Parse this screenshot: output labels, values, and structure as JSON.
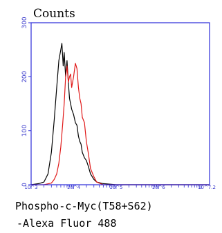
{
  "chart_data": {
    "type": "line",
    "ylabel": "Counts",
    "xlabel_line1": "Phospho-c-Myc(T58+S62)",
    "xlabel_line2": "-Alexa Fluor 488",
    "x_scale": "log",
    "xlim": [
      1000,
      15848932
    ],
    "ylim": [
      0,
      300
    ],
    "y_ticks": [
      {
        "value": 0,
        "label": "0"
      },
      {
        "value": 100,
        "label": "100"
      },
      {
        "value": 200,
        "label": "200"
      },
      {
        "value": 300,
        "label": "300"
      }
    ],
    "x_ticks": [
      {
        "value": 1000,
        "label": "10^3"
      },
      {
        "value": 10000,
        "label": "10^4"
      },
      {
        "value": 100000,
        "label": "10^5"
      },
      {
        "value": 1000000,
        "label": "10^6"
      },
      {
        "value": 15848932,
        "label": "10^7.2"
      }
    ],
    "series": [
      {
        "color": "#000000",
        "points": [
          [
            1000,
            0
          ],
          [
            1500,
            2
          ],
          [
            2000,
            5
          ],
          [
            2500,
            20
          ],
          [
            3000,
            60
          ],
          [
            3500,
            120
          ],
          [
            4000,
            180
          ],
          [
            4500,
            230
          ],
          [
            5000,
            250
          ],
          [
            5300,
            262
          ],
          [
            5700,
            220
          ],
          [
            6000,
            245
          ],
          [
            6500,
            200
          ],
          [
            7000,
            230
          ],
          [
            7500,
            190
          ],
          [
            8000,
            160
          ],
          [
            8500,
            150
          ],
          [
            9000,
            140
          ],
          [
            10000,
            130
          ],
          [
            11000,
            115
          ],
          [
            12000,
            110
          ],
          [
            13000,
            90
          ],
          [
            14000,
            80
          ],
          [
            15000,
            75
          ],
          [
            16000,
            60
          ],
          [
            18000,
            50
          ],
          [
            20000,
            45
          ],
          [
            22000,
            35
          ],
          [
            25000,
            20
          ],
          [
            30000,
            10
          ],
          [
            35000,
            5
          ],
          [
            50000,
            2
          ],
          [
            100000,
            0
          ],
          [
            15848932,
            0
          ]
        ]
      },
      {
        "color": "#e01818",
        "points": [
          [
            1000,
            0
          ],
          [
            2000,
            0
          ],
          [
            3000,
            3
          ],
          [
            3500,
            10
          ],
          [
            4000,
            20
          ],
          [
            4500,
            40
          ],
          [
            5000,
            70
          ],
          [
            5500,
            110
          ],
          [
            6000,
            150
          ],
          [
            6500,
            200
          ],
          [
            7000,
            220
          ],
          [
            7500,
            190
          ],
          [
            8000,
            200
          ],
          [
            8500,
            205
          ],
          [
            9000,
            180
          ],
          [
            10000,
            200
          ],
          [
            11000,
            225
          ],
          [
            12000,
            215
          ],
          [
            13000,
            180
          ],
          [
            14000,
            160
          ],
          [
            15000,
            150
          ],
          [
            16000,
            125
          ],
          [
            18000,
            115
          ],
          [
            20000,
            80
          ],
          [
            22000,
            60
          ],
          [
            25000,
            30
          ],
          [
            30000,
            15
          ],
          [
            35000,
            5
          ],
          [
            40000,
            3
          ],
          [
            50000,
            0
          ],
          [
            15848932,
            0
          ]
        ]
      }
    ]
  }
}
